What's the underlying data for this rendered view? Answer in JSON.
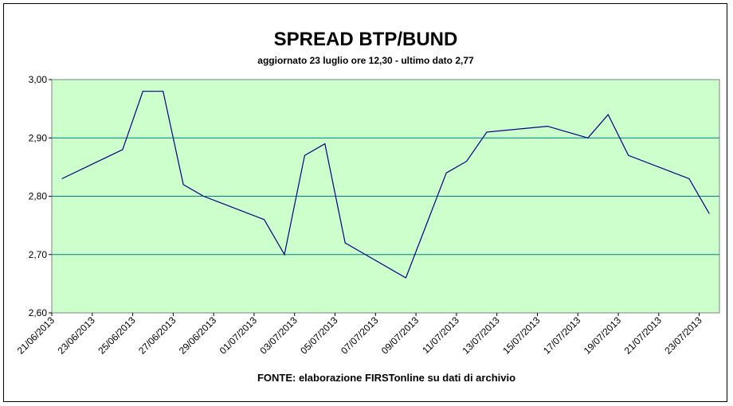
{
  "chart_data": {
    "type": "line",
    "title": "SPREAD BTP/BUND",
    "subtitle": "aggiornato 23 luglio ore 12,30 - ultimo dato 2,77",
    "note": "FONTE: elaborazione FIRSTonline su dati di archivio",
    "x": [
      "21/06/2013",
      "24/06/2013",
      "25/06/2013",
      "26/06/2013",
      "27/06/2013",
      "28/06/2013",
      "01/07/2013",
      "02/07/2013",
      "03/07/2013",
      "04/07/2013",
      "05/07/2013",
      "08/07/2013",
      "09/07/2013",
      "10/07/2013",
      "11/07/2013",
      "12/07/2013",
      "15/07/2013",
      "17/07/2013",
      "18/07/2013",
      "19/07/2013",
      "22/07/2013",
      "23/07/2013"
    ],
    "series": [
      {
        "name": "Spread",
        "color": "#000080",
        "values": [
          2.83,
          2.88,
          2.98,
          2.98,
          2.82,
          2.8,
          2.76,
          2.7,
          2.87,
          2.89,
          2.72,
          2.66,
          2.75,
          2.84,
          2.86,
          2.91,
          2.92,
          2.9,
          2.94,
          2.87,
          2.83,
          2.77
        ]
      }
    ],
    "xlim": [
      "21/06/2013",
      "24/07/2013"
    ],
    "xticks": [
      "21/06/2013",
      "23/06/2013",
      "25/06/2013",
      "27/06/2013",
      "29/06/2013",
      "01/07/2013",
      "03/07/2013",
      "05/07/2013",
      "07/07/2013",
      "09/07/2013",
      "11/07/2013",
      "13/07/2013",
      "15/07/2013",
      "17/07/2013",
      "19/07/2013",
      "21/07/2013",
      "23/07/2013"
    ],
    "ylim": [
      2.6,
      3.0
    ],
    "yticks": [
      {
        "value": 2.6,
        "label": "2,60"
      },
      {
        "value": 2.7,
        "label": "2,70"
      },
      {
        "value": 2.8,
        "label": "2,80"
      },
      {
        "value": 2.9,
        "label": "2,90"
      },
      {
        "value": 3.0,
        "label": "3,00"
      }
    ],
    "grid": true
  }
}
